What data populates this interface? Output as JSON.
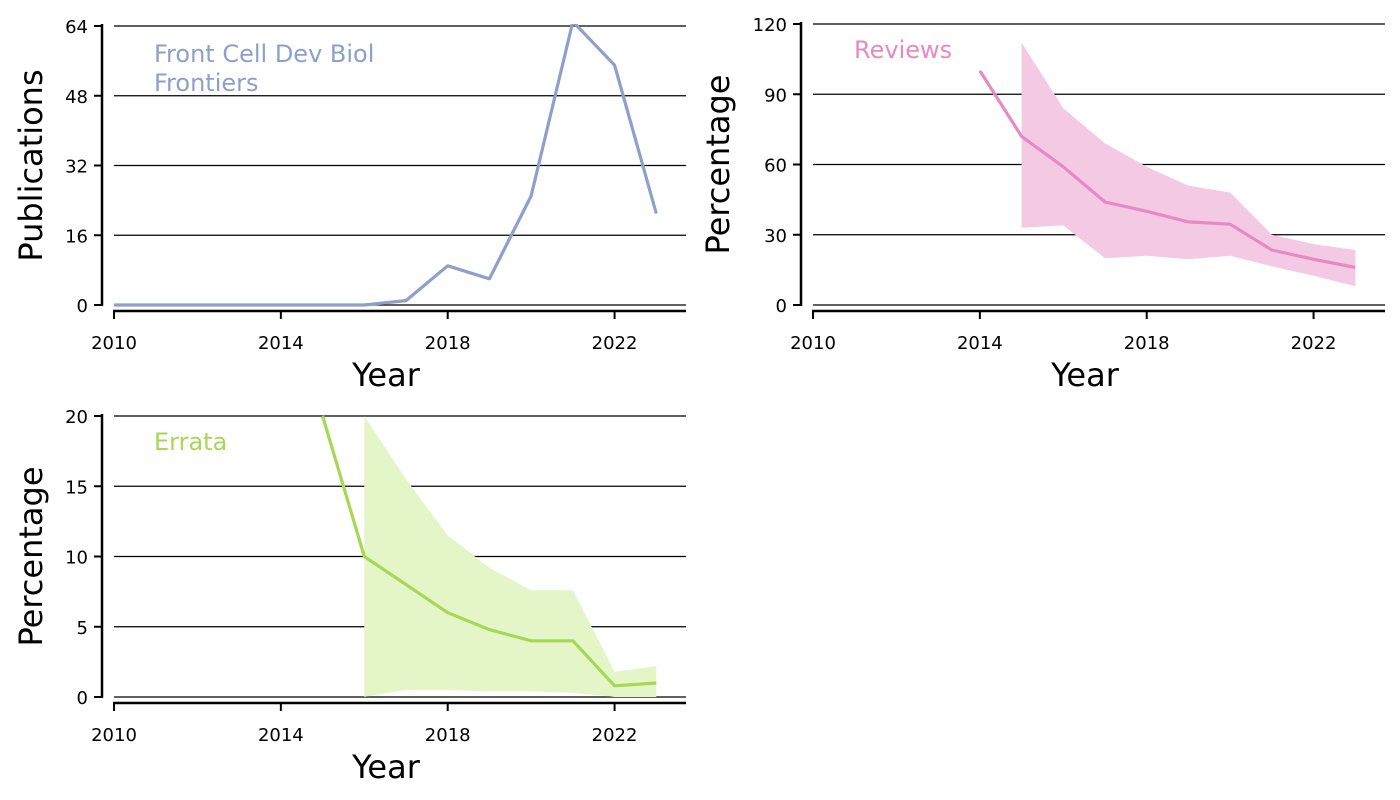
{
  "colors": {
    "publications": "#8da0cb",
    "reviews": "#e78ac3",
    "reviews_band": "#f4c9e3",
    "errata": "#a6d854",
    "errata_band": "#e4f5c8",
    "grid": "#000000"
  },
  "chart_data": [
    {
      "type": "line",
      "title": "",
      "xlabel": "Year",
      "ylabel": "Publications",
      "annotations": [
        "Front Cell Dev Biol",
        "Frontiers"
      ],
      "xlim": [
        2010,
        2024
      ],
      "ylim": [
        0,
        64
      ],
      "xticks": [
        2010,
        2014,
        2018,
        2022
      ],
      "yticks": [
        0,
        16,
        32,
        48,
        64
      ],
      "grid": "horizontal",
      "series": [
        {
          "x": [
            2010,
            2011,
            2012,
            2013,
            2014,
            2015,
            2016,
            2017,
            2018,
            2019,
            2020,
            2021,
            2022,
            2023
          ],
          "y": [
            0,
            0,
            0,
            0,
            0,
            0,
            0,
            1,
            9,
            6,
            25,
            65,
            55,
            21
          ]
        }
      ]
    },
    {
      "type": "line",
      "title": "",
      "xlabel": "Year",
      "ylabel": "Percentage",
      "annotations": [
        "Reviews"
      ],
      "xlim": [
        2010,
        2024
      ],
      "ylim": [
        0,
        120
      ],
      "xticks": [
        2010,
        2014,
        2018,
        2022
      ],
      "yticks": [
        0,
        30,
        60,
        90,
        120
      ],
      "grid": "horizontal",
      "series": [
        {
          "x": [
            2014,
            2015,
            2016,
            2017,
            2018,
            2019,
            2020,
            2021,
            2022,
            2023
          ],
          "y": [
            100,
            72,
            59,
            44,
            40,
            35.5,
            34.5,
            23.5,
            19.5,
            16
          ]
        }
      ],
      "band": {
        "x": [
          2015,
          2016,
          2017,
          2018,
          2019,
          2020,
          2021,
          2022,
          2023
        ],
        "lower": [
          33,
          34,
          20,
          21,
          19.5,
          21,
          16.5,
          12.5,
          8
        ],
        "upper": [
          112,
          84,
          69,
          59,
          51,
          48,
          30,
          26,
          23.5
        ]
      }
    },
    {
      "type": "line",
      "title": "",
      "xlabel": "Year",
      "ylabel": "Percentage",
      "annotations": [
        "Errata"
      ],
      "xlim": [
        2010,
        2024
      ],
      "ylim": [
        0,
        20
      ],
      "xticks": [
        2010,
        2014,
        2018,
        2022
      ],
      "yticks": [
        0,
        5,
        10,
        15,
        20
      ],
      "grid": "horizontal",
      "series": [
        {
          "x": [
            2015,
            2016,
            2017,
            2018,
            2019,
            2020,
            2021,
            2022,
            2023
          ],
          "y": [
            20,
            10,
            8,
            6,
            4.8,
            4,
            4,
            0.8,
            1
          ]
        }
      ],
      "band": {
        "x": [
          2016,
          2017,
          2018,
          2019,
          2020,
          2021,
          2022,
          2023
        ],
        "lower": [
          0,
          0.5,
          0.5,
          0.4,
          0.4,
          0.3,
          0,
          0
        ],
        "upper": [
          20,
          15.5,
          11.5,
          9.2,
          7.6,
          7.6,
          1.8,
          2.2
        ]
      }
    }
  ]
}
